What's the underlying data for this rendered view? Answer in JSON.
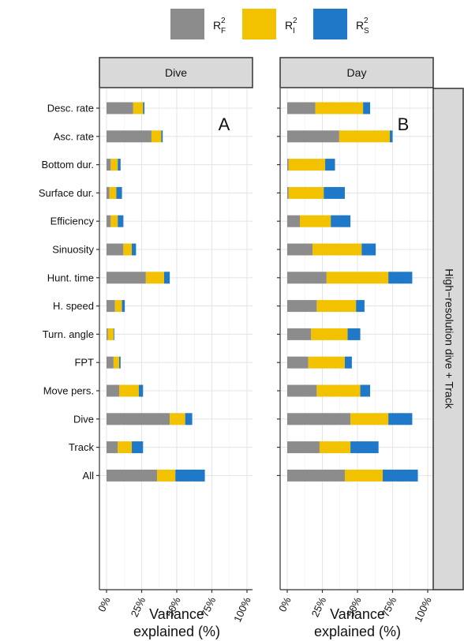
{
  "chart_data": {
    "type": "bar",
    "stacked": true,
    "orientation": "horizontal",
    "categories": [
      "Desc. rate",
      "Asc. rate",
      "Bottom dur.",
      "Surface dur.",
      "Efficiency",
      "Sinuosity",
      "Hunt. time",
      "H. speed",
      "Turn. angle",
      "FPT",
      "Move pers.",
      "Dive",
      "Track",
      "All"
    ],
    "legend": [
      {
        "key": "F",
        "label": "R",
        "sup": "2",
        "sub": "F",
        "color": "#8c8c8c"
      },
      {
        "key": "I",
        "label": "R",
        "sup": "2",
        "sub": "I",
        "color": "#f2c200"
      },
      {
        "key": "S",
        "label": "R",
        "sup": "2",
        "sub": "S",
        "color": "#1f78c8"
      }
    ],
    "legend_position": "top",
    "facet_right_label": "High−resolution dive + Track",
    "xlabel_line1": "Variance",
    "xlabel_line2": "explained (%)",
    "xticks": [
      "0%",
      "25%",
      "50%",
      "75%",
      "100%"
    ],
    "xlim": [
      0,
      100
    ],
    "grid": true,
    "panels": [
      {
        "title": "Dive",
        "letter": "A",
        "series": [
          {
            "key": "F",
            "values": [
              19,
              32,
              3,
              2,
              3,
              12,
              28,
              6,
              1,
              5,
              9,
              45,
              8,
              36
            ]
          },
          {
            "key": "I",
            "values": [
              7,
              7,
              5,
              5,
              5,
              6,
              13,
              5,
              4,
              4,
              14,
              11,
              10,
              13
            ]
          },
          {
            "key": "S",
            "values": [
              1,
              1,
              2,
              4,
              4,
              3,
              4,
              2,
              0.5,
              1,
              3,
              5,
              8,
              21
            ]
          }
        ]
      },
      {
        "title": "Day",
        "letter": "B",
        "series": [
          {
            "key": "F",
            "values": [
              20,
              37,
              1,
              1,
              9,
              18,
              28,
              21,
              17,
              15,
              21,
              45,
              23,
              41
            ]
          },
          {
            "key": "I",
            "values": [
              34,
              36,
              26,
              25,
              22,
              35,
              44,
              28,
              26,
              26,
              31,
              27,
              22,
              27
            ]
          },
          {
            "key": "S",
            "values": [
              5,
              2,
              7,
              15,
              14,
              10,
              17,
              6,
              9,
              5,
              7,
              17,
              20,
              25
            ]
          }
        ]
      }
    ]
  }
}
